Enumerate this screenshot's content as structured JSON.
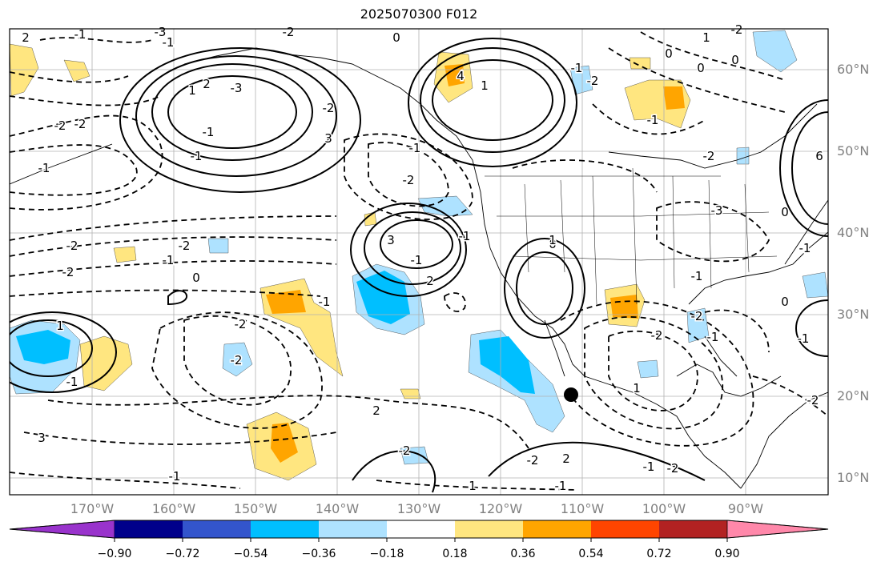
{
  "title": "2025070300 F012",
  "lat_labels": [
    "60°N",
    "50°N",
    "40°N",
    "30°N",
    "20°N",
    "10°N"
  ],
  "lon_labels": [
    "170°W",
    "160°W",
    "150°W",
    "140°W",
    "130°W",
    "120°W",
    "110°W",
    "100°W",
    "90°W"
  ],
  "colorbar": {
    "ticks": [
      "−0.90",
      "−0.72",
      "−0.54",
      "−0.36",
      "−0.18",
      "0.18",
      "0.36",
      "0.54",
      "0.72",
      "0.90"
    ],
    "colors": [
      "#9933cc",
      "#00008b",
      "#3355cc",
      "#00bfff",
      "#aee2ff",
      "#ffffff",
      "#ffe680",
      "#ffa500",
      "#ff4500",
      "#b22222",
      "#ff88aa"
    ]
  },
  "contour_labels": [
    "2",
    "-3",
    "-2",
    "-1",
    "-1",
    "-2",
    "0",
    "-2",
    "-1",
    "2",
    "-3",
    "-1",
    "-1",
    "-2",
    "1",
    "3",
    "-1",
    "-2",
    "3",
    "4",
    "1",
    "0",
    "-1",
    "2",
    "-1",
    "-2",
    "-2",
    "-1",
    "-2",
    "-2",
    "-1",
    "0",
    "-2",
    "-1",
    "1",
    "3",
    "-1",
    "2",
    "-2",
    "1",
    "-1",
    "-2",
    "2",
    "-1",
    "-2",
    "1",
    "-2",
    "-1",
    "-2",
    "-1",
    "0",
    "0",
    "1",
    "-2",
    "0",
    "-1",
    "-2",
    "-1",
    "0",
    "-1",
    "-2",
    "0",
    "-1",
    "1",
    "-2",
    "-3",
    "6"
  ],
  "marker": "storm-center-dot"
}
